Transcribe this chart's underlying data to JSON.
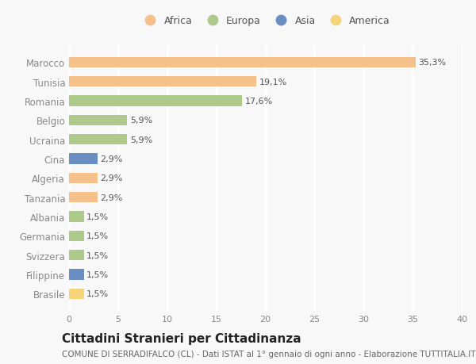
{
  "countries": [
    "Brasile",
    "Filippine",
    "Svizzera",
    "Germania",
    "Albania",
    "Tanzania",
    "Algeria",
    "Cina",
    "Ucraina",
    "Belgio",
    "Romania",
    "Tunisia",
    "Marocco"
  ],
  "values": [
    1.5,
    1.5,
    1.5,
    1.5,
    1.5,
    2.9,
    2.9,
    2.9,
    5.9,
    5.9,
    17.6,
    19.1,
    35.3
  ],
  "labels": [
    "1,5%",
    "1,5%",
    "1,5%",
    "1,5%",
    "1,5%",
    "2,9%",
    "2,9%",
    "2,9%",
    "5,9%",
    "5,9%",
    "17,6%",
    "19,1%",
    "35,3%"
  ],
  "continents": [
    "America",
    "Asia",
    "Europa",
    "Europa",
    "Europa",
    "Africa",
    "Africa",
    "Asia",
    "Europa",
    "Europa",
    "Europa",
    "Africa",
    "Africa"
  ],
  "colors": {
    "Africa": "#F5C08A",
    "Europa": "#AECA8A",
    "Asia": "#6B8EC2",
    "America": "#F5D47A"
  },
  "xlim": [
    0,
    40
  ],
  "xticks": [
    0,
    5,
    10,
    15,
    20,
    25,
    30,
    35,
    40
  ],
  "background_color": "#f8f8f8",
  "grid_color": "#ffffff",
  "title": "Cittadini Stranieri per Cittadinanza",
  "subtitle": "COMUNE DI SERRADIFALCO (CL) - Dati ISTAT al 1° gennaio di ogni anno - Elaborazione TUTTITALIA.IT",
  "bar_height": 0.55,
  "label_fontsize": 8,
  "ytick_fontsize": 8.5,
  "xtick_fontsize": 8,
  "title_fontsize": 11,
  "subtitle_fontsize": 7.5,
  "legend_order": [
    "Africa",
    "Europa",
    "Asia",
    "America"
  ],
  "legend_colors": {
    "Africa": "#F5C08A",
    "Europa": "#AECA8A",
    "Asia": "#6B8EC2",
    "America": "#F5D47A"
  }
}
